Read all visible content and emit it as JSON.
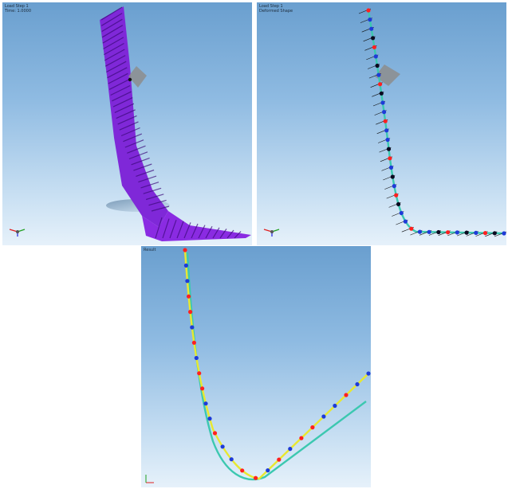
{
  "viewports": [
    {
      "id": "vp1",
      "label_lines": [
        "Load Step 1",
        "Time: 1.0000"
      ],
      "model": "surface",
      "surface_color": "#8a2be2"
    },
    {
      "id": "vp2",
      "label_lines": [
        "Load Step 1",
        "Deformed Shape"
      ],
      "model": "beam-with-nodes",
      "node_colors": [
        "#ff2020",
        "#1e3bd8",
        "#0a0a20"
      ],
      "beam_color": "#3cc8b0"
    },
    {
      "id": "vp3",
      "label_lines": [
        "Result"
      ],
      "model": "two-curves",
      "curve_colors": [
        "#e8e830",
        "#3cc8b0"
      ],
      "node_colors": [
        "#ff2020",
        "#1e3bd8"
      ]
    }
  ],
  "colors": {
    "background_top": "#6a9fcf",
    "background_bottom": "#e6f1fa",
    "triad_x": "#e02020",
    "triad_y": "#20a020",
    "triad_z": "#2020e0"
  },
  "icons": {
    "triad": "coordinate-triad-icon",
    "plane": "plane-marker-icon"
  }
}
